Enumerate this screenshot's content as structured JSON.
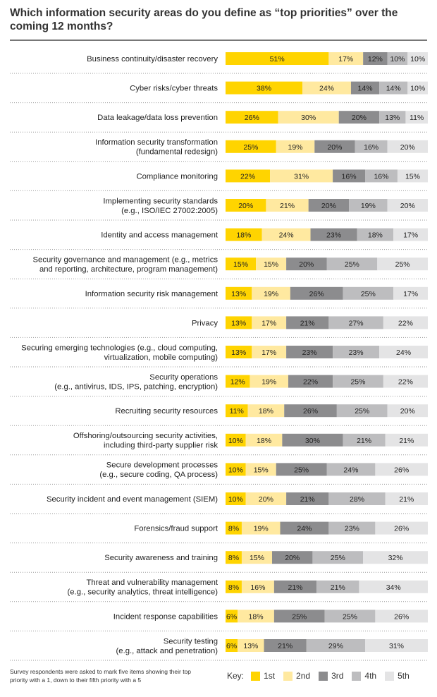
{
  "title": "Which information security areas do you define as “top priorities” over the coming 12 months?",
  "note": "Survey respondents were asked to mark five items showing their top priority with a 1, down to their fifth priority with a 5",
  "key_label": "Key:",
  "colors": [
    "#ffd400",
    "#ffe9a0",
    "#8c8c8e",
    "#bdbdbf",
    "#e4e4e5"
  ],
  "chart_data": {
    "type": "bar",
    "stacked": "horizontal-100%",
    "value_suffix": "%",
    "series": [
      {
        "name": "1st",
        "values": [
          51,
          38,
          26,
          25,
          22,
          20,
          18,
          15,
          13,
          13,
          13,
          12,
          11,
          10,
          10,
          10,
          8,
          8,
          8,
          6,
          6
        ]
      },
      {
        "name": "2nd",
        "values": [
          17,
          24,
          30,
          19,
          31,
          21,
          24,
          15,
          19,
          17,
          17,
          19,
          18,
          18,
          15,
          20,
          19,
          15,
          16,
          18,
          13
        ]
      },
      {
        "name": "3rd",
        "values": [
          12,
          14,
          20,
          20,
          16,
          20,
          23,
          20,
          26,
          21,
          23,
          22,
          26,
          30,
          25,
          21,
          24,
          20,
          21,
          25,
          21
        ]
      },
      {
        "name": "4th",
        "values": [
          10,
          14,
          13,
          16,
          16,
          19,
          18,
          25,
          25,
          27,
          23,
          25,
          25,
          21,
          24,
          28,
          23,
          25,
          21,
          25,
          29
        ]
      },
      {
        "name": "5th",
        "values": [
          10,
          10,
          11,
          20,
          15,
          20,
          17,
          25,
          17,
          22,
          24,
          22,
          20,
          21,
          26,
          21,
          26,
          32,
          34,
          26,
          31
        ]
      }
    ],
    "categories": [
      [
        "Business continuity/disaster recovery"
      ],
      [
        "Cyber risks/cyber threats"
      ],
      [
        "Data leakage/data loss prevention"
      ],
      [
        "Information security transformation",
        "(fundamental redesign)"
      ],
      [
        "Compliance monitoring"
      ],
      [
        "Implementing security standards",
        "(e.g., ISO/IEC 27002:2005)"
      ],
      [
        "Identity and access management"
      ],
      [
        "Security governance and management (e.g., metrics",
        "and reporting, architecture, program management)"
      ],
      [
        "Information security risk management"
      ],
      [
        "Privacy"
      ],
      [
        "Securing emerging technologies (e.g., cloud computing,",
        "virtualization, mobile computing)"
      ],
      [
        "Security operations",
        "(e.g., antivirus, IDS, IPS, patching, encryption)"
      ],
      [
        "Recruiting security resources"
      ],
      [
        "Offshoring/outsourcing security activities,",
        "including third-party supplier risk"
      ],
      [
        "Secure development processes",
        "(e.g., secure coding, QA process)"
      ],
      [
        "Security incident and event management (SIEM)"
      ],
      [
        "Forensics/fraud support"
      ],
      [
        "Security awareness and training"
      ],
      [
        "Threat and vulnerability management",
        "(e.g., security analytics, threat intelligence)"
      ],
      [
        "Incident response capabilities"
      ],
      [
        "Security testing",
        "(e.g., attack and penetration)"
      ]
    ]
  }
}
